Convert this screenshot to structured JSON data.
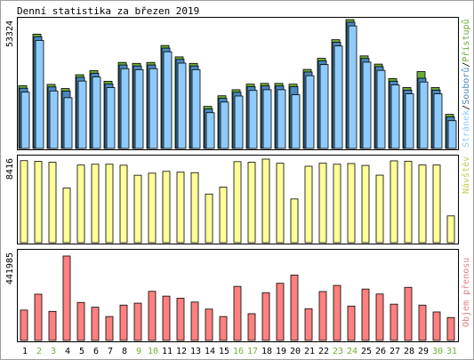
{
  "title": "Denní statistika za březen 2019",
  "colors": {
    "hits": "#6aaa3a",
    "files": "#4a88c0",
    "pages": "#8fcbff",
    "visits": "#ffff99",
    "visits_label": "#c8c850",
    "kbytes": "#ff8080",
    "kbytes_label": "#e08080",
    "weekend": "#70b030",
    "weekday": "#000000"
  },
  "chart_data": [
    {
      "type": "bar",
      "panel": "hits",
      "ymax_label": "53324",
      "ylim": [
        0,
        53324
      ],
      "categories": [
        "1",
        "2",
        "3",
        "4",
        "5",
        "6",
        "7",
        "8",
        "9",
        "10",
        "11",
        "12",
        "13",
        "14",
        "15",
        "16",
        "17",
        "18",
        "19",
        "20",
        "21",
        "22",
        "23",
        "24",
        "25",
        "26",
        "27",
        "28",
        "29",
        "30",
        "31"
      ],
      "legend": [
        "Stránek",
        "Souborů",
        "Přístupů"
      ],
      "legend_sep": "/",
      "series": [
        {
          "name": "Přístupů",
          "values": [
            26000,
            47300,
            26500,
            24800,
            30500,
            32200,
            27800,
            35600,
            35200,
            35600,
            42600,
            37900,
            35200,
            17400,
            21800,
            24300,
            26600,
            26900,
            26900,
            26600,
            32700,
            37300,
            45000,
            53324,
            38300,
            34900,
            28900,
            25200,
            31800,
            25200,
            14100
          ]
        },
        {
          "name": "Souborů",
          "values": [
            25300,
            46600,
            25800,
            24100,
            29800,
            31500,
            27100,
            34900,
            34500,
            34900,
            41900,
            37200,
            34500,
            16700,
            21100,
            23600,
            25900,
            26200,
            26200,
            25900,
            32000,
            36600,
            44300,
            52600,
            37600,
            34200,
            28200,
            24500,
            29400,
            24500,
            13400
          ]
        },
        {
          "name": "Stránek",
          "values": [
            24400,
            45800,
            24900,
            22100,
            29000,
            30700,
            26300,
            34100,
            33700,
            34100,
            41100,
            36400,
            33700,
            15900,
            20300,
            22800,
            25100,
            25400,
            25400,
            23300,
            31200,
            35800,
            43500,
            51800,
            36800,
            33400,
            27400,
            23700,
            28600,
            23700,
            12600
          ]
        }
      ]
    },
    {
      "type": "bar",
      "panel": "visits",
      "ymax_label": "8416",
      "ylim": [
        0,
        8416
      ],
      "categories": [
        "1",
        "2",
        "3",
        "4",
        "5",
        "6",
        "7",
        "8",
        "9",
        "10",
        "11",
        "12",
        "13",
        "14",
        "15",
        "16",
        "17",
        "18",
        "19",
        "20",
        "21",
        "22",
        "23",
        "24",
        "25",
        "26",
        "27",
        "28",
        "29",
        "30",
        "31"
      ],
      "legend": [
        "Návštěv"
      ],
      "series": [
        {
          "name": "Návštěv",
          "values": [
            8260,
            8190,
            8100,
            5500,
            7820,
            7900,
            7900,
            7800,
            6790,
            7000,
            7180,
            7100,
            7050,
            4900,
            5600,
            8160,
            8100,
            8416,
            8000,
            4400,
            7700,
            8000,
            7900,
            7970,
            7780,
            6800,
            8240,
            8210,
            7820,
            7820,
            2700
          ]
        }
      ]
    },
    {
      "type": "bar",
      "panel": "kbytes",
      "ymax_label": "441985",
      "ylim": [
        0,
        441985
      ],
      "categories": [
        "1",
        "2",
        "3",
        "4",
        "5",
        "6",
        "7",
        "8",
        "9",
        "10",
        "11",
        "12",
        "13",
        "14",
        "15",
        "16",
        "17",
        "18",
        "19",
        "20",
        "21",
        "22",
        "23",
        "24",
        "25",
        "26",
        "27",
        "28",
        "29",
        "30",
        "31"
      ],
      "legend": [
        "Objem přenosu"
      ],
      "series": [
        {
          "name": "Objem přenosu",
          "values": [
            159000,
            242000,
            152000,
            441985,
            199000,
            174000,
            125000,
            185000,
            195000,
            257000,
            232000,
            221000,
            201000,
            164000,
            125000,
            283000,
            140000,
            250000,
            299000,
            342000,
            166000,
            256000,
            288000,
            180000,
            269000,
            243000,
            190000,
            278000,
            185000,
            149000,
            120000
          ]
        }
      ]
    }
  ]
}
